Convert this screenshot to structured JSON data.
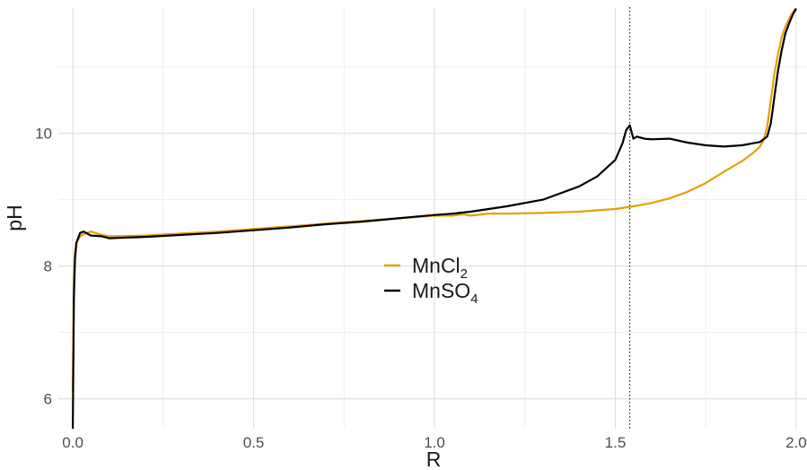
{
  "chart_data": {
    "type": "line",
    "xlabel": "R",
    "ylabel": "pH",
    "xlim": [
      -0.04,
      2.03
    ],
    "ylim": [
      5.55,
      11.9
    ],
    "x_ticks": [
      0.0,
      0.5,
      1.0,
      1.5,
      2.0
    ],
    "x_tick_labels": [
      "0.0",
      "0.5",
      "1.0",
      "1.5",
      "2.0"
    ],
    "y_ticks": [
      6,
      8,
      10
    ],
    "y_tick_labels": [
      "6",
      "8",
      "10"
    ],
    "grid": true,
    "vline": {
      "x": 1.54,
      "style": "dotted"
    },
    "legend": {
      "placement": "center",
      "entries": [
        {
          "base": "MnCl",
          "sub": "2",
          "color": "#E69F00"
        },
        {
          "base": "MnSO",
          "sub": "4",
          "color": "#000000"
        }
      ]
    },
    "series": [
      {
        "label_index": 0,
        "color": "#E69F00",
        "x": [
          0.0,
          0.003,
          0.006,
          0.01,
          0.02,
          0.03,
          0.05,
          0.08,
          0.1,
          0.2,
          0.3,
          0.4,
          0.5,
          0.6,
          0.7,
          0.8,
          0.9,
          1.0,
          1.05,
          1.08,
          1.1,
          1.15,
          1.2,
          1.3,
          1.4,
          1.5,
          1.55,
          1.6,
          1.65,
          1.7,
          1.75,
          1.8,
          1.85,
          1.88,
          1.9,
          1.91,
          1.92,
          1.93,
          1.94,
          1.95,
          1.96,
          1.97,
          1.98,
          1.99,
          2.0
        ],
        "y": [
          6.1,
          7.8,
          8.2,
          8.35,
          8.45,
          8.48,
          8.52,
          8.47,
          8.45,
          8.46,
          8.49,
          8.52,
          8.56,
          8.6,
          8.64,
          8.68,
          8.72,
          8.76,
          8.76,
          8.78,
          8.76,
          8.79,
          8.79,
          8.8,
          8.82,
          8.86,
          8.9,
          8.95,
          9.02,
          9.12,
          9.25,
          9.42,
          9.58,
          9.7,
          9.8,
          9.9,
          10.1,
          10.5,
          10.9,
          11.2,
          11.45,
          11.6,
          11.72,
          11.82,
          11.88
        ]
      },
      {
        "label_index": 1,
        "color": "#000000",
        "x": [
          0.0,
          0.003,
          0.006,
          0.01,
          0.02,
          0.03,
          0.05,
          0.08,
          0.1,
          0.2,
          0.3,
          0.4,
          0.5,
          0.6,
          0.7,
          0.8,
          0.9,
          1.0,
          1.05,
          1.1,
          1.15,
          1.2,
          1.3,
          1.4,
          1.45,
          1.5,
          1.52,
          1.53,
          1.54,
          1.55,
          1.56,
          1.58,
          1.6,
          1.65,
          1.7,
          1.75,
          1.8,
          1.85,
          1.9,
          1.92,
          1.93,
          1.94,
          1.95,
          1.96,
          1.97,
          1.98,
          1.99,
          2.0
        ],
        "y": [
          5.55,
          7.5,
          8.1,
          8.35,
          8.5,
          8.52,
          8.46,
          8.45,
          8.42,
          8.44,
          8.47,
          8.5,
          8.54,
          8.58,
          8.63,
          8.67,
          8.72,
          8.77,
          8.79,
          8.82,
          8.86,
          8.9,
          9.0,
          9.2,
          9.35,
          9.6,
          9.85,
          10.05,
          10.12,
          9.92,
          9.95,
          9.92,
          9.91,
          9.92,
          9.86,
          9.82,
          9.8,
          9.82,
          9.87,
          9.95,
          10.15,
          10.55,
          10.95,
          11.25,
          11.5,
          11.65,
          11.78,
          11.88
        ]
      }
    ]
  }
}
